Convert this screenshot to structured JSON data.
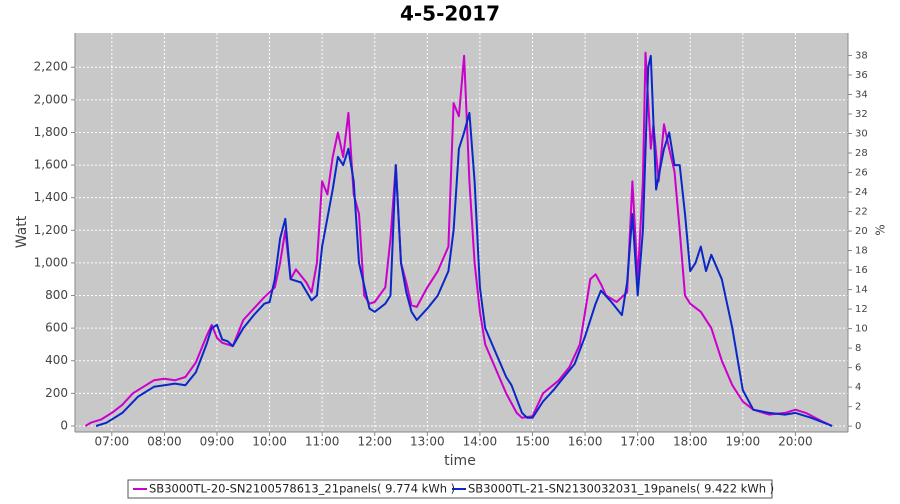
{
  "chart_data": {
    "type": "line",
    "title": "4-5-2017",
    "x_label": "time",
    "y_label": "Watt",
    "y2_label": "%",
    "xlim": [
      6.3,
      21.0
    ],
    "xticks": [
      {
        "value": 7,
        "label": "07:00"
      },
      {
        "value": 8,
        "label": "08:00"
      },
      {
        "value": 9,
        "label": "09:00"
      },
      {
        "value": 10,
        "label": "10:00"
      },
      {
        "value": 11,
        "label": "11:00"
      },
      {
        "value": 12,
        "label": "12:00"
      },
      {
        "value": 13,
        "label": "13:00"
      },
      {
        "value": 14,
        "label": "14:00"
      },
      {
        "value": 15,
        "label": "15:00"
      },
      {
        "value": 16,
        "label": "16:00"
      },
      {
        "value": 17,
        "label": "17:00"
      },
      {
        "value": 18,
        "label": "18:00"
      },
      {
        "value": 19,
        "label": "19:00"
      },
      {
        "value": 20,
        "label": "20:00"
      }
    ],
    "ylim": [
      -37,
      2410
    ],
    "yticks": [
      0,
      200,
      400,
      600,
      800,
      {
        "value": 1000,
        "label": "1,000"
      },
      {
        "value": 1200,
        "label": "1,200"
      },
      {
        "value": 1400,
        "label": "1,400"
      },
      {
        "value": 1600,
        "label": "1,600"
      },
      {
        "value": 1800,
        "label": "1,800"
      },
      {
        "value": 2000,
        "label": "2,000"
      },
      {
        "value": 2200,
        "label": "2,200"
      }
    ],
    "y2lim": [
      -0.6,
      40.3
    ],
    "y2ticks": [
      0,
      2,
      4,
      6,
      8,
      10,
      12,
      14,
      16,
      18,
      20,
      22,
      24,
      26,
      28,
      30,
      32,
      34,
      36,
      38
    ],
    "grid": true,
    "legend": "bottom",
    "series": [
      {
        "name": "SB3000TL-20-SN2100578613_21panels( 9.774 kWh )",
        "color": "#cc00cc",
        "x": [
          6.5,
          6.6,
          6.8,
          7.0,
          7.2,
          7.4,
          7.6,
          7.8,
          8.0,
          8.2,
          8.4,
          8.6,
          8.8,
          8.9,
          9.0,
          9.1,
          9.3,
          9.5,
          9.7,
          9.9,
          10.1,
          10.2,
          10.3,
          10.4,
          10.5,
          10.7,
          10.8,
          10.9,
          11.0,
          11.1,
          11.2,
          11.3,
          11.4,
          11.5,
          11.6,
          11.7,
          11.8,
          11.9,
          12.0,
          12.2,
          12.3,
          12.4,
          12.5,
          12.6,
          12.7,
          12.8,
          13.0,
          13.2,
          13.4,
          13.5,
          13.6,
          13.7,
          13.8,
          13.9,
          14.0,
          14.1,
          14.3,
          14.5,
          14.7,
          14.8,
          15.0,
          15.2,
          15.5,
          15.7,
          15.9,
          16.0,
          16.1,
          16.2,
          16.3,
          16.4,
          16.6,
          16.8,
          16.9,
          17.0,
          17.1,
          17.15,
          17.25,
          17.3,
          17.4,
          17.5,
          17.6,
          17.7,
          17.8,
          17.9,
          18.0,
          18.2,
          18.4,
          18.6,
          18.8,
          19.0,
          19.2,
          19.5,
          19.8,
          20.0,
          20.2,
          20.5,
          20.7
        ],
        "values": [
          0,
          20,
          40,
          80,
          130,
          200,
          240,
          280,
          290,
          280,
          300,
          390,
          550,
          620,
          540,
          510,
          490,
          650,
          720,
          790,
          850,
          1000,
          1200,
          900,
          960,
          880,
          820,
          1000,
          1500,
          1420,
          1650,
          1800,
          1650,
          1920,
          1420,
          1300,
          800,
          750,
          760,
          850,
          1150,
          1600,
          1000,
          880,
          740,
          730,
          850,
          950,
          1100,
          1980,
          1900,
          2270,
          1500,
          1000,
          700,
          500,
          350,
          200,
          80,
          50,
          60,
          200,
          280,
          360,
          500,
          700,
          900,
          930,
          870,
          800,
          760,
          820,
          1500,
          900,
          1500,
          2290,
          1700,
          1850,
          1500,
          1850,
          1700,
          1560,
          1200,
          800,
          750,
          700,
          600,
          400,
          250,
          150,
          100,
          70,
          80,
          100,
          80,
          30,
          0
        ]
      },
      {
        "name": "SB3000TL-21-SN2130032031_19panels( 9.422 kWh )",
        "color": "#0a28c8",
        "x": [
          6.7,
          6.9,
          7.2,
          7.5,
          7.8,
          8.0,
          8.2,
          8.4,
          8.6,
          8.8,
          8.9,
          9.0,
          9.1,
          9.2,
          9.3,
          9.5,
          9.7,
          9.9,
          10.0,
          10.1,
          10.2,
          10.3,
          10.4,
          10.6,
          10.8,
          10.9,
          11.0,
          11.2,
          11.3,
          11.4,
          11.5,
          11.6,
          11.7,
          11.9,
          12.0,
          12.2,
          12.3,
          12.4,
          12.5,
          12.6,
          12.7,
          12.8,
          13.0,
          13.2,
          13.4,
          13.5,
          13.6,
          13.7,
          13.8,
          13.9,
          14.0,
          14.1,
          14.3,
          14.5,
          14.6,
          14.8,
          14.9,
          15.0,
          15.2,
          15.4,
          15.6,
          15.8,
          16.0,
          16.2,
          16.3,
          16.5,
          16.7,
          16.8,
          16.9,
          17.0,
          17.1,
          17.2,
          17.25,
          17.35,
          17.5,
          17.6,
          17.7,
          17.8,
          17.9,
          18.0,
          18.1,
          18.2,
          18.3,
          18.4,
          18.6,
          18.8,
          19.0,
          19.2,
          19.5,
          19.8,
          20.0,
          20.3,
          20.7
        ],
        "values": [
          0,
          20,
          80,
          180,
          240,
          250,
          260,
          250,
          330,
          500,
          600,
          620,
          530,
          520,
          490,
          600,
          680,
          750,
          760,
          900,
          1150,
          1270,
          900,
          880,
          770,
          800,
          1100,
          1450,
          1650,
          1600,
          1700,
          1500,
          1000,
          720,
          700,
          750,
          800,
          1600,
          1000,
          820,
          700,
          650,
          720,
          800,
          950,
          1200,
          1700,
          1800,
          1920,
          1500,
          850,
          600,
          450,
          300,
          250,
          80,
          50,
          50,
          150,
          220,
          300,
          380,
          550,
          750,
          830,
          760,
          680,
          880,
          1300,
          800,
          1200,
          2200,
          2270,
          1450,
          1700,
          1800,
          1600,
          1600,
          1300,
          950,
          1000,
          1100,
          950,
          1050,
          900,
          600,
          220,
          100,
          80,
          70,
          80,
          50,
          0
        ]
      }
    ]
  }
}
